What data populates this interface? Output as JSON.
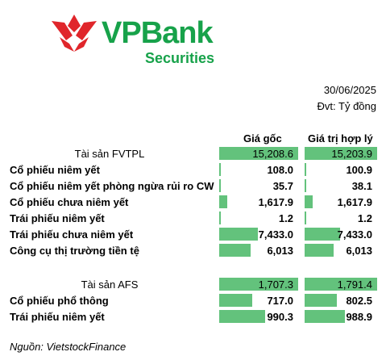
{
  "logo": {
    "name": "VPBank",
    "sub": "Securities"
  },
  "date": "30/06/2025",
  "unit": "Đvt: Tỷ đồng",
  "bar_color": "#63c27c",
  "table": {
    "headers": [
      "Giá gốc",
      "Giá trị hợp lý"
    ],
    "sections": [
      {
        "rows": [
          {
            "label": "Tài sản FVTPL",
            "values": [
              15208.6,
              15203.9
            ],
            "value_labels": [
              "15,208.6",
              "15,203.9"
            ]
          },
          {
            "label": "Cổ phiếu niêm yết",
            "values": [
              108.0,
              100.9
            ],
            "value_labels": [
              "108.0",
              "100.9"
            ]
          },
          {
            "label": "Cổ phiếu niêm yết phòng ngừa rủi ro CW",
            "values": [
              35.7,
              38.1
            ],
            "value_labels": [
              "35.7",
              "38.1"
            ]
          },
          {
            "label": "Cổ phiếu chưa niêm yết",
            "values": [
              1617.9,
              1617.9
            ],
            "value_labels": [
              "1,617.9",
              "1,617.9"
            ]
          },
          {
            "label": "Trái phiếu niêm yết",
            "values": [
              1.2,
              1.2
            ],
            "value_labels": [
              "1.2",
              "1.2"
            ]
          },
          {
            "label": "Trái phiếu chưa niêm yết",
            "values": [
              7433.0,
              7433.0
            ],
            "value_labels": [
              "7,433.0",
              "7,433.0"
            ]
          },
          {
            "label": "Công cụ thị trường tiền tệ",
            "values": [
              6013,
              6013
            ],
            "value_labels": [
              "6,013",
              "6,013"
            ]
          }
        ]
      },
      {
        "rows": [
          {
            "label": "Tài sản AFS",
            "values": [
              1707.3,
              1791.4
            ],
            "value_labels": [
              "1,707.3",
              "1,791.4"
            ]
          },
          {
            "label": "Cổ phiếu phổ thông",
            "values": [
              717.0,
              802.5
            ],
            "value_labels": [
              "717.0",
              "802.5"
            ]
          },
          {
            "label": "Trái phiếu niêm yết",
            "values": [
              990.3,
              988.9
            ],
            "value_labels": [
              "990.3",
              "988.9"
            ]
          }
        ]
      }
    ]
  },
  "source": "Nguồn: VietstockFinance"
}
